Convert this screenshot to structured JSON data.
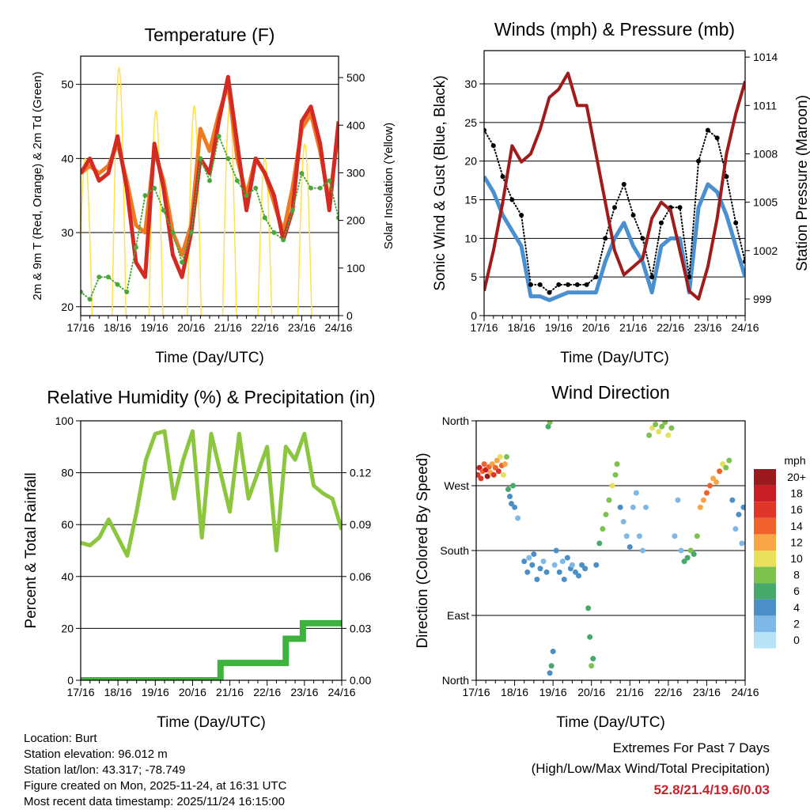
{
  "info": {
    "location": "Location: Burt",
    "elevation": "Station elevation: 96.012 m",
    "latlon": "Station lat/lon: 43.317; -78.749",
    "created": "Figure created on Mon, 2025-11-24, at 16:31 UTC",
    "latest": "Most recent data timestamp: 2025/11/24 16:15:00"
  },
  "extremes": {
    "title": "Extremes For Past 7 Days",
    "subtitle": "(High/Low/Max Wind/Total Precipitation)",
    "values": "52.8/21.4/19.6/0.03",
    "color": "#c8232c"
  },
  "chart_data": [
    {
      "id": "temperature",
      "type": "line",
      "title": "Temperature (F)",
      "xlabel": "Time (Day/UTC)",
      "ylabel": "2m & 9m T (Red, Orange) & 2m Td (Green)",
      "ylabel_right": "Solar Insolation (Yellow)",
      "x_range_hours": [
        0,
        168
      ],
      "x_tick_labels": [
        "17/16",
        "18/16",
        "19/16",
        "20/16",
        "21/16",
        "22/16",
        "23/16",
        "24/16"
      ],
      "ylim": [
        18.8,
        53.8
      ],
      "yticks": [
        20,
        30,
        40,
        50
      ],
      "ytick_labels": [
        "20",
        "30",
        "40",
        "50"
      ],
      "y2lim": [
        0,
        545
      ],
      "y2ticks": [
        0,
        100,
        200,
        300,
        400,
        500
      ],
      "y2tick_labels": [
        "0",
        "100",
        "200",
        "300",
        "400",
        "500"
      ],
      "grid": true,
      "time_h": [
        0,
        6,
        12,
        18,
        24,
        30,
        36,
        42,
        48,
        54,
        60,
        66,
        72,
        78,
        84,
        90,
        96,
        102,
        108,
        114,
        120,
        126,
        132,
        138,
        144,
        150,
        156,
        162,
        168
      ],
      "series": [
        {
          "name": "9m T",
          "color": "#f07a22",
          "axis": "left",
          "values": [
            38,
            39,
            38,
            39,
            42,
            37,
            31,
            30,
            41,
            37,
            30,
            27,
            31,
            44,
            41,
            46,
            50,
            40,
            35,
            40,
            38,
            34,
            30,
            36,
            44,
            46,
            41,
            34,
            44
          ]
        },
        {
          "name": "2m T",
          "color": "#d42a24",
          "axis": "left",
          "values": [
            38,
            40,
            37,
            38,
            43,
            36,
            26,
            24,
            42,
            36,
            27,
            24,
            30,
            40,
            38,
            45,
            51,
            42,
            33,
            40,
            38,
            35,
            29,
            33,
            45,
            47,
            42,
            33,
            45
          ]
        },
        {
          "name": "2m Td",
          "color": "#48a83a",
          "axis": "left",
          "style": "dots",
          "values": [
            22,
            21,
            24,
            24,
            23,
            22,
            28,
            35,
            36,
            33,
            30,
            26,
            30,
            40,
            37,
            43,
            40,
            37,
            35,
            36,
            32,
            30,
            29,
            33,
            38,
            36,
            36,
            37,
            32
          ]
        }
      ],
      "solar": {
        "name": "Solar Insolation",
        "color": "#ffe14a",
        "daylight_hours": 9,
        "peak_time_h": [
          3,
          25,
          49,
          74,
          97,
          120,
          146
        ],
        "peak_values": [
          330,
          520,
          430,
          440,
          440,
          330,
          360
        ]
      }
    },
    {
      "id": "winds",
      "type": "line",
      "title": "Winds (mph) & Pressure (mb)",
      "xlabel": "Time (Day/UTC)",
      "ylabel": "Sonic Wind & Gust (Blue, Black)",
      "ylabel_right": "Station Pressure (Maroon)",
      "x_range_hours": [
        0,
        168
      ],
      "x_tick_labels": [
        "17/16",
        "18/16",
        "19/16",
        "20/16",
        "21/16",
        "22/16",
        "23/16",
        "24/16"
      ],
      "ylim": [
        0,
        34.3
      ],
      "yticks": [
        0,
        5,
        10,
        15,
        20,
        25,
        30
      ],
      "ytick_labels": [
        "0",
        "5",
        "10",
        "15",
        "20",
        "25",
        "30"
      ],
      "y2lim": [
        997.97,
        1014.4
      ],
      "y2ticks": [
        999,
        1002,
        1005,
        1008,
        1011,
        1014
      ],
      "y2tick_labels": [
        "999",
        "1002",
        "1005",
        "1008",
        "1011",
        "1014"
      ],
      "grid": true,
      "time_h": [
        0,
        6,
        12,
        18,
        24,
        30,
        36,
        42,
        48,
        54,
        60,
        66,
        72,
        78,
        84,
        90,
        96,
        102,
        108,
        114,
        120,
        126,
        132,
        138,
        144,
        150,
        156,
        162,
        168
      ],
      "series": [
        {
          "name": "Sonic Wind",
          "color": "#4a90d0",
          "axis": "left",
          "values": [
            18,
            16,
            13,
            11,
            9,
            2.5,
            2.5,
            2,
            2.5,
            3,
            3,
            3,
            3,
            7,
            10,
            12,
            9,
            7,
            3,
            9,
            10,
            10,
            3,
            14,
            17,
            16,
            13,
            9,
            5
          ]
        },
        {
          "name": "Gust",
          "color": "#000000",
          "axis": "left",
          "style": "dots",
          "values": [
            24,
            22,
            18,
            15,
            13,
            4,
            4,
            3,
            4,
            4,
            4,
            4,
            5,
            10,
            14,
            17,
            13,
            10,
            5,
            12,
            14,
            14,
            5,
            20,
            24,
            23,
            18,
            12,
            7
          ]
        },
        {
          "name": "Station Pressure",
          "color": "#a01c1c",
          "axis": "right",
          "values": [
            999.5,
            1002,
            1005,
            1008.5,
            1007.5,
            1008,
            1009.5,
            1011.5,
            1012,
            1013,
            1011,
            1011,
            1008,
            1005,
            1002,
            1000.5,
            1001,
            1001.5,
            1004,
            1005,
            1004.5,
            1002,
            999.5,
            999,
            1001,
            1004,
            1008,
            1010.5,
            1012.5
          ]
        }
      ]
    },
    {
      "id": "humidity",
      "type": "line",
      "title": "Relative Humidity (%) & Precipitation (in)",
      "xlabel": "Time (Day/UTC)",
      "ylabel": "Percent & Total Rainfall",
      "x_range_hours": [
        0,
        168
      ],
      "x_tick_labels": [
        "17/16",
        "18/16",
        "19/16",
        "20/16",
        "21/16",
        "22/16",
        "23/16",
        "24/16"
      ],
      "ylim": [
        0,
        100
      ],
      "yticks": [
        0,
        20,
        40,
        60,
        80,
        100
      ],
      "ytick_labels": [
        "0",
        "20",
        "40",
        "60",
        "80",
        "100"
      ],
      "y2lim": [
        0,
        0.15
      ],
      "y2ticks": [
        0,
        0.03,
        0.06,
        0.09,
        0.12
      ],
      "y2tick_labels": [
        "0.00",
        "0.03",
        "0.06",
        "0.09",
        "0.12"
      ],
      "grid": true,
      "time_h": [
        0,
        6,
        12,
        18,
        24,
        30,
        36,
        42,
        48,
        54,
        60,
        66,
        72,
        78,
        84,
        90,
        96,
        102,
        108,
        114,
        120,
        126,
        132,
        138,
        144,
        150,
        156,
        162,
        168
      ],
      "series": [
        {
          "name": "Relative Humidity",
          "color": "#8cc63f",
          "axis": "left",
          "values": [
            53,
            52,
            55,
            62,
            55,
            48,
            65,
            85,
            95,
            96,
            70,
            85,
            96,
            55,
            95,
            80,
            65,
            95,
            70,
            80,
            90,
            50,
            90,
            85,
            95,
            75,
            72,
            70,
            58
          ]
        }
      ],
      "precip": {
        "name": "Total Precipitation",
        "color": "#3db33d",
        "step_time_h": [
          0,
          90,
          132,
          143,
          168
        ],
        "step_values": [
          0,
          0.01,
          0.024,
          0.033,
          0.033
        ]
      }
    },
    {
      "id": "wind_direction",
      "type": "scatter",
      "title": "Wind Direction",
      "xlabel": "Time (Day/UTC)",
      "ylabel": "Direction (Colored By Speed)",
      "x_range_hours": [
        0,
        168
      ],
      "x_tick_labels": [
        "17/16",
        "18/16",
        "19/16",
        "20/16",
        "21/16",
        "22/16",
        "23/16",
        "24/16"
      ],
      "ylim": [
        0,
        360
      ],
      "yticks": [
        0,
        90,
        180,
        270,
        360
      ],
      "ytick_labels": [
        "North",
        "East",
        "South",
        "West",
        "North"
      ],
      "grid": true,
      "legend": {
        "title": "mph",
        "labels": [
          "20+",
          "18",
          "16",
          "14",
          "12",
          "10",
          "8",
          "6",
          "4",
          "2",
          "0"
        ],
        "colors": [
          "#9b1a1d",
          "#c81e24",
          "#e0362a",
          "#f0622a",
          "#f7a545",
          "#e6e05a",
          "#7dc24e",
          "#46a86b",
          "#4a8fc8",
          "#7fb8e6",
          "#b8e2f8"
        ]
      },
      "points": [
        [
          1,
          285,
          16
        ],
        [
          2,
          295,
          18
        ],
        [
          3,
          280,
          17
        ],
        [
          4,
          290,
          15
        ],
        [
          5,
          300,
          14
        ],
        [
          6,
          292,
          19
        ],
        [
          7,
          283,
          20
        ],
        [
          8,
          296,
          15
        ],
        [
          9,
          288,
          13
        ],
        [
          10,
          300,
          12
        ],
        [
          11,
          285,
          16
        ],
        [
          12,
          295,
          14
        ],
        [
          13,
          305,
          12
        ],
        [
          14,
          290,
          17
        ],
        [
          15,
          310,
          11
        ],
        [
          16,
          298,
          14
        ],
        [
          17,
          285,
          10
        ],
        [
          18,
          300,
          12
        ],
        [
          19,
          310,
          8
        ],
        [
          20,
          265,
          6
        ],
        [
          21,
          255,
          5
        ],
        [
          22,
          245,
          4
        ],
        [
          23,
          270,
          7
        ],
        [
          24,
          240,
          4
        ],
        [
          26,
          225,
          3
        ],
        [
          30,
          165,
          4
        ],
        [
          32,
          150,
          5
        ],
        [
          33,
          170,
          3
        ],
        [
          35,
          160,
          4
        ],
        [
          36,
          175,
          4
        ],
        [
          38,
          140,
          5
        ],
        [
          40,
          155,
          4
        ],
        [
          42,
          165,
          3
        ],
        [
          44,
          150,
          4
        ],
        [
          45,
          352,
          7
        ],
        [
          46,
          358,
          8
        ],
        [
          47,
          20,
          6
        ],
        [
          46,
          10,
          5
        ],
        [
          48,
          40,
          4
        ],
        [
          49,
          160,
          3
        ],
        [
          50,
          180,
          4
        ],
        [
          52,
          150,
          5
        ],
        [
          54,
          165,
          3
        ],
        [
          55,
          140,
          4
        ],
        [
          57,
          170,
          4
        ],
        [
          59,
          155,
          5
        ],
        [
          60,
          160,
          3
        ],
        [
          62,
          150,
          4
        ],
        [
          64,
          145,
          4
        ],
        [
          66,
          160,
          5
        ],
        [
          68,
          155,
          4
        ],
        [
          70,
          100,
          6
        ],
        [
          71,
          60,
          7
        ],
        [
          72,
          20,
          8
        ],
        [
          73,
          30,
          7
        ],
        [
          75,
          160,
          5
        ],
        [
          77,
          190,
          6
        ],
        [
          79,
          210,
          8
        ],
        [
          81,
          230,
          8
        ],
        [
          83,
          250,
          9
        ],
        [
          85,
          270,
          10
        ],
        [
          87,
          285,
          9
        ],
        [
          88,
          300,
          8
        ],
        [
          90,
          240,
          4
        ],
        [
          92,
          220,
          3
        ],
        [
          94,
          200,
          3
        ],
        [
          96,
          185,
          4
        ],
        [
          98,
          240,
          2
        ],
        [
          100,
          260,
          2
        ],
        [
          102,
          200,
          3
        ],
        [
          104,
          180,
          2
        ],
        [
          106,
          240,
          3
        ],
        [
          108,
          340,
          9
        ],
        [
          110,
          350,
          10
        ],
        [
          112,
          355,
          8
        ],
        [
          114,
          345,
          11
        ],
        [
          116,
          352,
          9
        ],
        [
          118,
          358,
          8
        ],
        [
          120,
          340,
          10
        ],
        [
          122,
          350,
          9
        ],
        [
          124,
          200,
          3
        ],
        [
          126,
          250,
          2
        ],
        [
          128,
          180,
          3
        ],
        [
          130,
          165,
          6
        ],
        [
          132,
          170,
          7
        ],
        [
          134,
          180,
          8
        ],
        [
          136,
          175,
          6
        ],
        [
          138,
          200,
          9
        ],
        [
          140,
          240,
          12
        ],
        [
          142,
          250,
          13
        ],
        [
          144,
          260,
          14
        ],
        [
          146,
          270,
          15
        ],
        [
          148,
          280,
          12
        ],
        [
          150,
          275,
          13
        ],
        [
          152,
          290,
          14
        ],
        [
          154,
          300,
          11
        ],
        [
          156,
          295,
          9
        ],
        [
          158,
          305,
          8
        ],
        [
          160,
          250,
          4
        ],
        [
          162,
          210,
          3
        ],
        [
          164,
          230,
          4
        ],
        [
          166,
          190,
          3
        ],
        [
          167,
          240,
          4
        ]
      ]
    }
  ]
}
